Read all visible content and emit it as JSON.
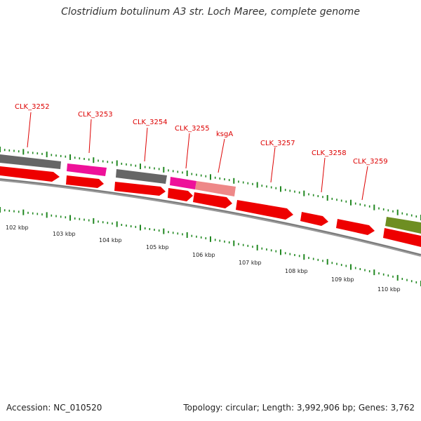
{
  "title": "Clostridium botulinum A3 str. Loch Maree, complete genome",
  "footer": {
    "accession": "Accession: NC_010520",
    "summary": "Topology: circular; Length: 3,992,906 bp; Genes: 3,762"
  },
  "colors": {
    "cds": "#ee0000",
    "gray_feature": "#666666",
    "magenta_feature": "#ee1199",
    "pink_feature": "#ee8888",
    "olive_feature": "#6e8e22",
    "tick": "#228822",
    "backbone": "#888888",
    "label": "#dd0000"
  },
  "gene_labels": [
    "CLK_3252",
    "CLK_3253",
    "CLK_3254",
    "CLK_3255",
    "ksgA",
    "CLK_3257",
    "CLK_3258",
    "CLK_3259"
  ],
  "kbp_labels": [
    "102 kbp",
    "103 kbp",
    "104 kbp",
    "105 kbp",
    "106 kbp",
    "107 kbp",
    "108 kbp",
    "109 kbp",
    "110 kbp"
  ]
}
